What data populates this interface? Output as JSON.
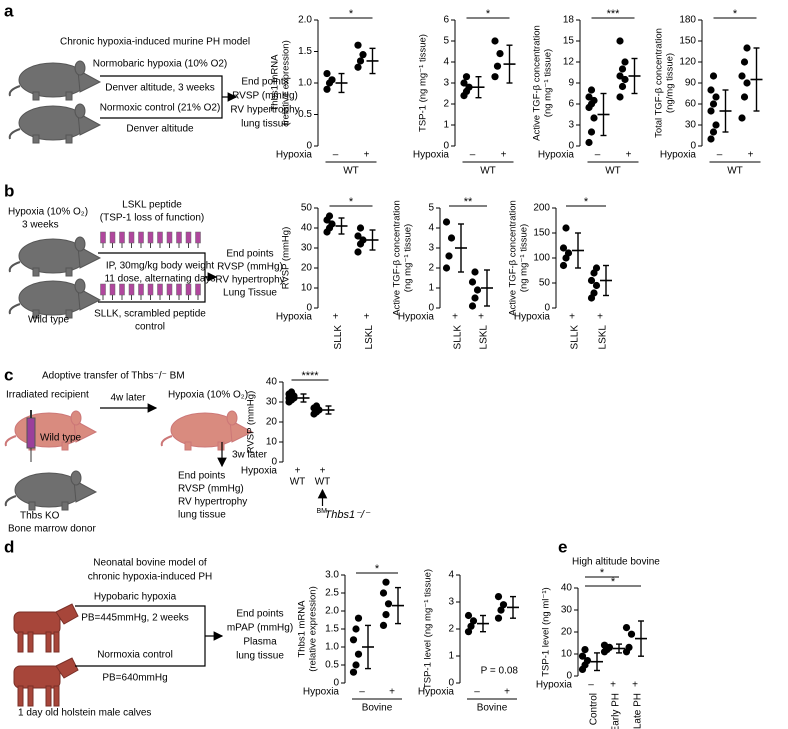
{
  "panels": {
    "a": {
      "label": "a",
      "texts": [
        "Chronic hypoxia-induced murine PH model",
        "Normobaric hypoxia (10% O2)",
        "Denver altitude, 3 weeks",
        "Normoxic control (21% O2)",
        "Denver altitude",
        "End points",
        "RVSP (mmHg)",
        "RV hypertrophy",
        "lung tissue"
      ]
    },
    "b": {
      "label": "b",
      "texts": [
        "Hypoxia (10% O₂)",
        "3 weeks",
        "LSKL peptide",
        "(TSP-1 loss of function)",
        "IP, 30mg/kg body weight",
        "11 dose, alternating days",
        "Wild type",
        "SLLK, scrambled peptide",
        "control",
        "End points",
        "RVSP (mmHg)",
        "RV hypertrophy",
        "Lung Tissue"
      ]
    },
    "c": {
      "label": "c",
      "texts": [
        "Adoptive transfer of Thbs⁻/⁻ BM",
        "Irradiated recipient",
        "4w later",
        "Hypoxia (10% O₂)",
        "Wild type",
        "3w later",
        "Thbs KO",
        "Bone marrow donor",
        "End points",
        "RVSP (mmHg)",
        "RV hypertrophy",
        "lung tissue"
      ]
    },
    "d": {
      "label": "d",
      "texts": [
        "Neonatal bovine model of",
        "chronic hypoxia-induced PH",
        "Hypobaric hypoxia",
        "PB=445mmHg, 2 weeks",
        "Normoxia control",
        "PB=640mmHg",
        "1 day old holstein male calves",
        "End points",
        "mPAP (mmHg)",
        "Plasma",
        "lung tissue"
      ]
    },
    "e": {
      "label": "e"
    }
  },
  "chart_data": [
    {
      "type": "dot",
      "ylabel": [
        "Thbs1 mRNA",
        "(relative expression)"
      ],
      "ylim": [
        0,
        2
      ],
      "yticks": [
        0,
        0.5,
        {
          "value": 1,
          "label": "1.0"
        },
        1.5,
        {
          "value": 2,
          "label": "2.0"
        }
      ],
      "row_label": "Hypoxia",
      "hypoxia": [
        "–",
        "+"
      ],
      "group_label": "WT",
      "significance": [
        "*"
      ],
      "groups": [
        {
          "points": [
            0.9,
            1.0,
            1.05,
            1.15
          ],
          "mean": 1.0,
          "error": 0.15
        },
        {
          "points": [
            1.25,
            1.35,
            1.45,
            1.6
          ],
          "mean": 1.35,
          "error": 0.2
        }
      ]
    },
    {
      "type": "dot",
      "ylabel": [
        "TSP-1 (ng mg⁻¹ tissue)"
      ],
      "ylim": [
        0,
        6
      ],
      "yticks": [
        0,
        1,
        2,
        3,
        4,
        5,
        6
      ],
      "row_label": "Hypoxia",
      "hypoxia": [
        "–",
        "+"
      ],
      "group_label": "WT",
      "significance": [
        "*"
      ],
      "groups": [
        {
          "points": [
            2.4,
            2.6,
            2.8,
            3.0,
            3.3
          ],
          "mean": 2.8,
          "error": 0.5
        },
        {
          "points": [
            3.3,
            3.8,
            4.4,
            5.0
          ],
          "mean": 3.9,
          "error": 0.9
        }
      ]
    },
    {
      "type": "dot",
      "ylabel": [
        "Active TGF-β concentration",
        "(ng mg⁻¹ tissue)"
      ],
      "ylim": [
        0,
        18
      ],
      "yticks": [
        0,
        3,
        6,
        9,
        12,
        15,
        18
      ],
      "row_label": "Hypoxia",
      "hypoxia": [
        "–",
        "+"
      ],
      "group_label": "WT",
      "significance": [
        "***"
      ],
      "groups": [
        {
          "points": [
            0.5,
            2,
            4,
            5.5,
            6,
            6.5,
            7,
            8
          ],
          "mean": 4.5,
          "error": 3
        },
        {
          "points": [
            7,
            8.5,
            9.5,
            10,
            11,
            12,
            15
          ],
          "mean": 10,
          "error": 2.5
        }
      ]
    },
    {
      "type": "dot",
      "ylabel": [
        "Total TGF-β concentration",
        "(ng/mg tissue)"
      ],
      "ylim": [
        0,
        180
      ],
      "yticks": [
        0,
        30,
        60,
        90,
        120,
        150,
        180
      ],
      "row_label": "Hypoxia",
      "hypoxia": [
        "–",
        "+"
      ],
      "group_label": "WT",
      "significance": [
        "*"
      ],
      "groups": [
        {
          "points": [
            10,
            20,
            30,
            50,
            60,
            70,
            80,
            100
          ],
          "mean": 50,
          "error": 30
        },
        {
          "points": [
            40,
            70,
            90,
            100,
            120,
            140
          ],
          "mean": 95,
          "error": 45
        }
      ]
    },
    {
      "type": "dot",
      "ylabel": [
        "RVSP (mmHg)"
      ],
      "ylim": [
        0,
        50
      ],
      "yticks": [
        0,
        10,
        20,
        30,
        40,
        50
      ],
      "row_label": "Hypoxia",
      "hypoxia": [
        "+",
        "+"
      ],
      "categories": [
        "SLLK",
        "LSKL"
      ],
      "significance": [
        "*"
      ],
      "groups": [
        {
          "points": [
            38,
            40,
            42,
            44,
            46
          ],
          "mean": 41,
          "error": 4
        },
        {
          "points": [
            28,
            32,
            34,
            36,
            40
          ],
          "mean": 34,
          "error": 5
        }
      ]
    },
    {
      "type": "dot",
      "ylabel": [
        "Active TGF-β concentration",
        "(ng mg⁻¹ tissue)"
      ],
      "ylim": [
        0,
        5
      ],
      "yticks": [
        0,
        1,
        2,
        3,
        4,
        5
      ],
      "row_label": "Hypoxia",
      "hypoxia": [
        "+",
        "+"
      ],
      "categories": [
        "SLLK",
        "LSKL"
      ],
      "significance": [
        "**"
      ],
      "groups": [
        {
          "points": [
            2,
            2.6,
            3.5,
            4.3
          ],
          "mean": 3,
          "error": 1.2
        },
        {
          "points": [
            0.1,
            0.5,
            0.9,
            1.3,
            1.8
          ],
          "mean": 1,
          "error": 0.9
        }
      ]
    },
    {
      "type": "dot",
      "ylabel": [
        "Active TGF-β concentration",
        "(ng mg⁻¹ tissue)"
      ],
      "ylim": [
        0,
        200
      ],
      "yticks": [
        0,
        50,
        100,
        150,
        200
      ],
      "row_label": "Hypoxia",
      "hypoxia": [
        "+",
        "+"
      ],
      "categories": [
        "SLLK",
        "LSKL"
      ],
      "significance": [
        "*"
      ],
      "groups": [
        {
          "points": [
            85,
            100,
            110,
            120,
            160
          ],
          "mean": 115,
          "error": 35
        },
        {
          "points": [
            20,
            30,
            45,
            55,
            70,
            80
          ],
          "mean": 55,
          "error": 30
        }
      ]
    },
    {
      "type": "dot",
      "ylabel": [
        "RVSP (mmHg)"
      ],
      "ylim": [
        0,
        40
      ],
      "yticks": [
        0,
        10,
        20,
        30,
        40
      ],
      "row_label": "Hypoxia",
      "hypoxia": [
        "+",
        "+"
      ],
      "categories": [
        "WT",
        "WT"
      ],
      "significance": [
        "****"
      ],
      "annotation_prefix": "BM",
      "annotation": "Thbs1⁻/⁻",
      "groups": [
        {
          "points": [
            30,
            31,
            32,
            32,
            33,
            33,
            34,
            35
          ],
          "mean": 32,
          "error": 2
        },
        {
          "points": [
            24,
            25,
            26,
            27,
            28
          ],
          "mean": 26,
          "error": 2
        }
      ]
    },
    {
      "type": "dot",
      "ylabel": [
        "Thbs1 mRNA",
        "(relative expression)"
      ],
      "ylim": [
        0,
        3
      ],
      "yticks": [
        0,
        0.5,
        {
          "value": 1,
          "label": "1.0"
        },
        1.5,
        {
          "value": 2,
          "label": "2.0"
        },
        2.5,
        {
          "value": 3,
          "label": "3.0"
        }
      ],
      "row_label": "Hypoxia",
      "hypoxia": [
        "–",
        "+"
      ],
      "group_label": "Bovine",
      "significance": [
        "*"
      ],
      "groups": [
        {
          "points": [
            0.3,
            0.5,
            0.8,
            1.2,
            1.5,
            1.8
          ],
          "mean": 1.0,
          "error": 0.6
        },
        {
          "points": [
            1.6,
            1.9,
            2.2,
            2.5,
            2.8
          ],
          "mean": 2.15,
          "error": 0.5
        }
      ]
    },
    {
      "type": "dot",
      "ylabel": [
        "TSP-1 level (ng mg⁻¹ tissue)"
      ],
      "ylim": [
        0,
        4
      ],
      "yticks": [
        0,
        1,
        2,
        3,
        4
      ],
      "row_label": "Hypoxia",
      "hypoxia": [
        "–",
        "+"
      ],
      "group_label": "Bovine",
      "p_value": "P = 0.08",
      "groups": [
        {
          "points": [
            1.9,
            2.1,
            2.3,
            2.5
          ],
          "mean": 2.2,
          "error": 0.3
        },
        {
          "points": [
            2.4,
            2.7,
            2.9,
            3.2
          ],
          "mean": 2.8,
          "error": 0.4
        }
      ]
    },
    {
      "type": "dot",
      "title": "High altitude bovine",
      "ylabel": [
        "TSP-1 level (ng ml⁻¹)"
      ],
      "ylim": [
        0,
        40
      ],
      "yticks": [
        0,
        10,
        20,
        30,
        40
      ],
      "row_label": "Hypoxia",
      "hypoxia": [
        "–",
        "+",
        "+"
      ],
      "categories": [
        "Control",
        "Early PH",
        "Late PH"
      ],
      "significance": [
        "*",
        "*"
      ],
      "groups": [
        {
          "points": [
            3,
            5,
            7,
            9,
            12
          ],
          "mean": 6.5,
          "error": 4
        },
        {
          "points": [
            11,
            12,
            13,
            14
          ],
          "mean": 12.5,
          "error": 2
        },
        {
          "points": [
            11,
            13,
            19,
            22
          ],
          "mean": 17,
          "error": 8
        }
      ]
    }
  ]
}
